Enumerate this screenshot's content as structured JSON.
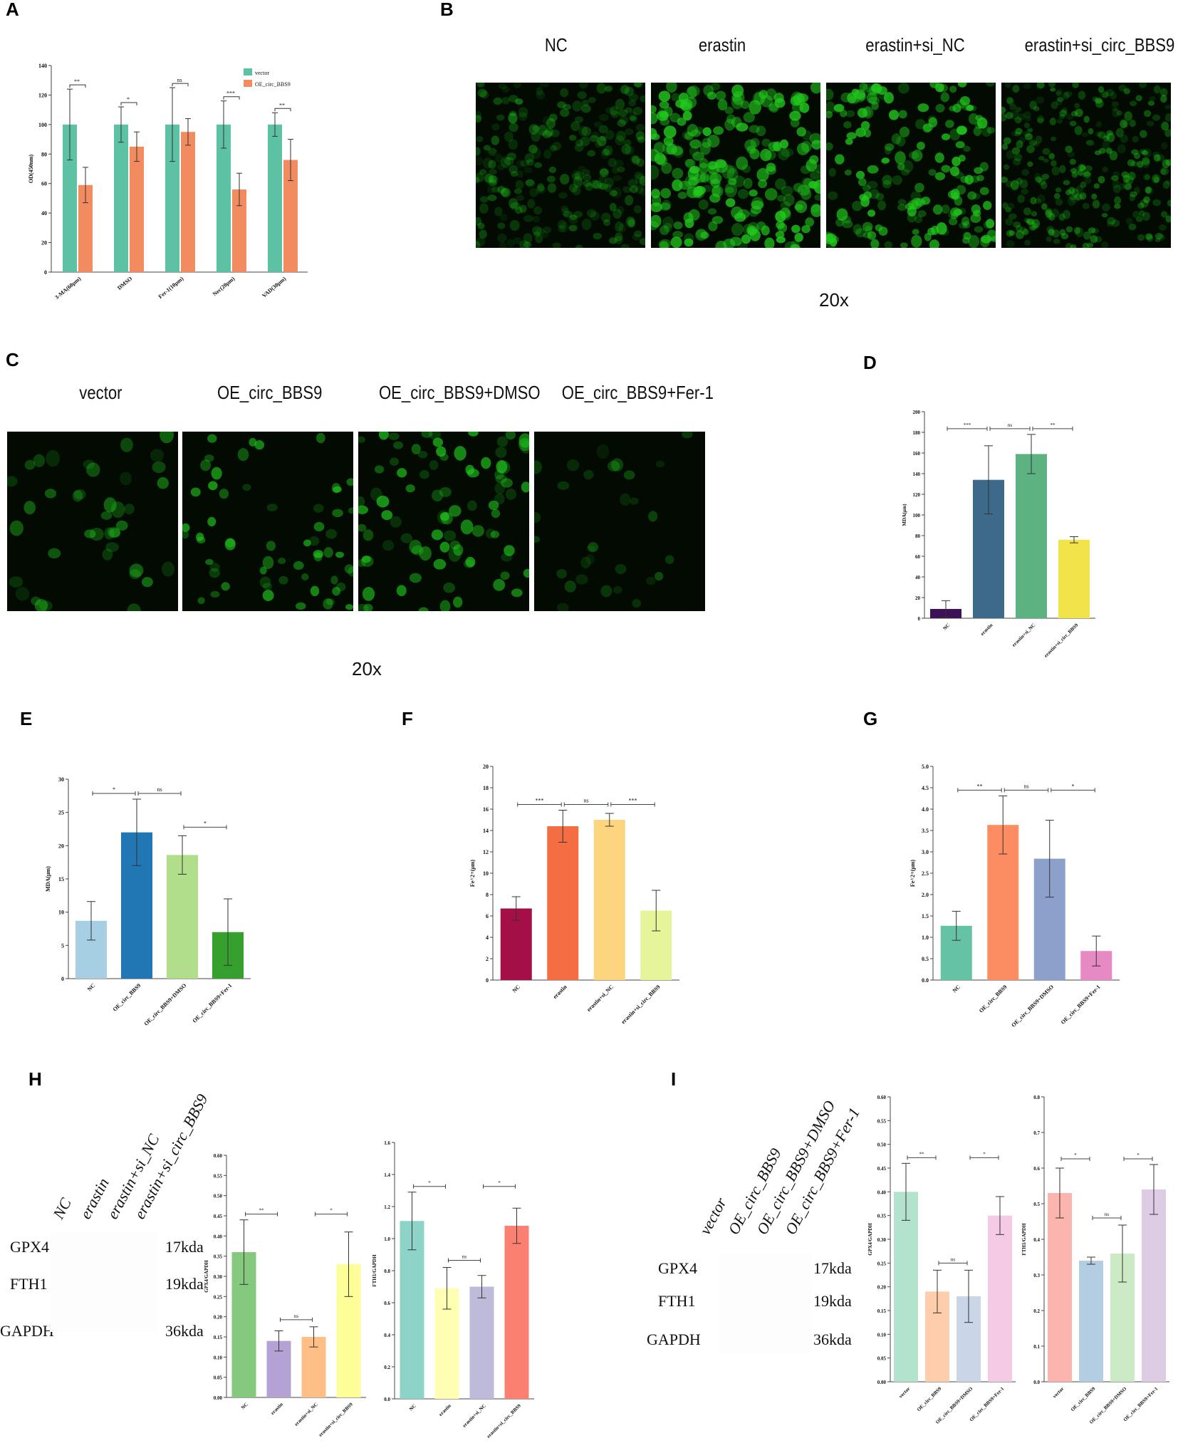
{
  "panels": {
    "A": "A",
    "B": "B",
    "C": "C",
    "D": "D",
    "E": "E",
    "F": "F",
    "G": "G",
    "H": "H",
    "I": "I"
  },
  "panel_B": {
    "headers": [
      "NC",
      "erastin",
      "erastin+si_NC",
      "erastin+si_circ_BBS9"
    ],
    "magnification": "20x"
  },
  "panel_C": {
    "headers": [
      "vector",
      "OE_circ_BBS9",
      "OE_circ_BBS9+DMSO",
      "OE_circ_BBS9+Fer-1"
    ],
    "magnification": "20x"
  },
  "panel_H": {
    "lanes": [
      "NC",
      "erastin",
      "erastin+si_NC",
      "erastin+si_circ_BBS9"
    ],
    "proteins": [
      "GPX4",
      "FTH1",
      "GAPDH"
    ],
    "sizes": [
      "17kda",
      "19kda",
      "36kda"
    ]
  },
  "panel_I": {
    "lanes": [
      "vector",
      "OE_circ_BBS9",
      "OE_circ_BBS9+DMSO",
      "OE_circ_BBS9+Fer-1"
    ],
    "proteins": [
      "GPX4",
      "FTH1",
      "GAPDH"
    ],
    "sizes": [
      "17kda",
      "19kda",
      "36kda"
    ]
  },
  "colors": {
    "micro_green": "#22c81e"
  },
  "chart_data": [
    {
      "id": "A",
      "type": "bar",
      "ylabel": "OD(450nm)",
      "ylim": [
        0,
        140
      ],
      "yticks": [
        0,
        20,
        40,
        60,
        80,
        100,
        120,
        140
      ],
      "categories": [
        "3-MA(60μm)",
        "DMSO",
        "Fer-1(10μm)",
        "Nec(20μm)",
        "VAD(30μm)"
      ],
      "legend": "top-right",
      "series": [
        {
          "name": "vector",
          "color": "#5cc2a3",
          "values": [
            100,
            100,
            100,
            100,
            100
          ],
          "errors": [
            24,
            12,
            25,
            16,
            8
          ]
        },
        {
          "name": "OE_circ_BBS9",
          "color": "#f38b60",
          "values": [
            59,
            85,
            95,
            56,
            76
          ],
          "errors": [
            12,
            10,
            9,
            11,
            14
          ]
        }
      ],
      "sig": [
        "**",
        "*",
        "ns",
        "***",
        "**"
      ]
    },
    {
      "id": "D",
      "type": "bar",
      "ylabel": "MDA(μm)",
      "ylim": [
        0,
        200
      ],
      "yticks": [
        0,
        20,
        40,
        60,
        80,
        100,
        120,
        140,
        160,
        180,
        200
      ],
      "categories": [
        "NC",
        "erastin",
        "erastin+si_NC",
        "erastin+si_circ_BBS9"
      ],
      "colors": [
        "#3d1155",
        "#3d6a8a",
        "#5cb281",
        "#f2e34a"
      ],
      "values": [
        9,
        134,
        159,
        76
      ],
      "errors": [
        8,
        33,
        19,
        3
      ],
      "sig": [
        "***",
        "ns",
        "**"
      ]
    },
    {
      "id": "E",
      "type": "bar",
      "ylabel": "MDA(μm)",
      "ylim": [
        0,
        30
      ],
      "yticks": [
        0,
        5,
        10,
        15,
        20,
        25,
        30
      ],
      "categories": [
        "NC",
        "OE_circ_BBS9",
        "OE_circ_BBS9+DMSO",
        "OE_circ_BBS9+Fer-1"
      ],
      "colors": [
        "#a7cfe3",
        "#2077b4",
        "#b1de8a",
        "#35a02e"
      ],
      "values": [
        8.7,
        22,
        18.6,
        7
      ],
      "errors": [
        2.9,
        5,
        2.9,
        5
      ],
      "sig": [
        "*",
        "ns",
        "*"
      ]
    },
    {
      "id": "F",
      "type": "bar",
      "ylabel": "Fe^2+(μm)",
      "ylim": [
        0,
        20
      ],
      "yticks": [
        0,
        2,
        4,
        6,
        8,
        10,
        12,
        14,
        16,
        18,
        20
      ],
      "categories": [
        "NC",
        "erastin",
        "erastin+si_NC",
        "erastin+si_circ_BBS9"
      ],
      "colors": [
        "#a50f47",
        "#f46d43",
        "#fdd57e",
        "#e6f49a"
      ],
      "values": [
        6.7,
        14.4,
        15,
        6.5
      ],
      "errors": [
        1.1,
        1.5,
        0.6,
        1.9
      ],
      "sig": [
        "***",
        "ns",
        "***"
      ]
    },
    {
      "id": "G",
      "type": "bar",
      "ylabel": "Fe^2+(μm)",
      "ylim": [
        0,
        5
      ],
      "yticks": [
        0,
        0.5,
        1.0,
        1.5,
        2.0,
        2.5,
        3.0,
        3.5,
        4.0,
        4.5,
        5.0
      ],
      "categories": [
        "NC",
        "OE_circ_BBS9",
        "OE_circ_BBS9+DMSO",
        "OE_circ_BBS9+Fer-1"
      ],
      "colors": [
        "#66c2a5",
        "#fc8d62",
        "#8da0cb",
        "#e78ac3"
      ],
      "values": [
        1.27,
        3.63,
        2.84,
        0.68
      ],
      "errors": [
        0.34,
        0.68,
        0.9,
        0.35
      ],
      "sig": [
        "**",
        "ns",
        "*"
      ]
    },
    {
      "id": "H1",
      "type": "bar",
      "ylabel": "GPX4/GAPDH",
      "ylim": [
        0,
        0.6
      ],
      "yticks": [
        0,
        0.05,
        0.1,
        0.15,
        0.2,
        0.25,
        0.3,
        0.35,
        0.4,
        0.45,
        0.5,
        0.55,
        0.6
      ],
      "categories": [
        "NC",
        "erastin",
        "erastin+si_NC",
        "erastin+si_circ_BBS9"
      ],
      "colors": [
        "#84c97e",
        "#b3a2d3",
        "#fdbf86",
        "#fefe99"
      ],
      "values": [
        0.36,
        0.14,
        0.15,
        0.33
      ],
      "errors": [
        0.08,
        0.025,
        0.025,
        0.08
      ],
      "sig": [
        "**",
        "ns",
        "*"
      ]
    },
    {
      "id": "H2",
      "type": "bar",
      "ylabel": "FTH1/GAPDH",
      "ylim": [
        0,
        1.6
      ],
      "yticks": [
        0,
        0.2,
        0.4,
        0.6,
        0.8,
        1.0,
        1.2,
        1.4,
        1.6
      ],
      "categories": [
        "NC",
        "erastin",
        "erastin+si_NC",
        "erastin+si_circ_BBS9"
      ],
      "colors": [
        "#8dd3c7",
        "#ffffb3",
        "#bebada",
        "#fb8072"
      ],
      "values": [
        1.11,
        0.69,
        0.7,
        1.08
      ],
      "errors": [
        0.18,
        0.13,
        0.07,
        0.11
      ],
      "sig": [
        "*",
        "ns",
        "*"
      ]
    },
    {
      "id": "I1",
      "type": "bar",
      "ylabel": "GPX4/GAPDH",
      "ylim": [
        0,
        0.6
      ],
      "yticks": [
        0,
        0.05,
        0.1,
        0.15,
        0.2,
        0.25,
        0.3,
        0.35,
        0.4,
        0.45,
        0.5,
        0.55,
        0.6
      ],
      "categories": [
        "vector",
        "OE_circ_BBS9",
        "OE_circ_BBS9+DMSO",
        "OE_circ_BBS9+Fer-1"
      ],
      "colors": [
        "#b3e2cd",
        "#fdcdac",
        "#cbd5e8",
        "#f4cae4"
      ],
      "values": [
        0.4,
        0.19,
        0.18,
        0.35
      ],
      "errors": [
        0.06,
        0.045,
        0.055,
        0.04
      ],
      "sig": [
        "**",
        "ns",
        "*"
      ]
    },
    {
      "id": "I2",
      "type": "bar",
      "ylabel": "FTH1/GAPDH",
      "ylim": [
        0,
        0.8
      ],
      "yticks": [
        0,
        0.1,
        0.2,
        0.3,
        0.4,
        0.5,
        0.6,
        0.7,
        0.8
      ],
      "categories": [
        "vector",
        "OE_circ_BBS9",
        "OE_circ_BBS9+DMSO",
        "OE_circ_BBS9+Fer-1"
      ],
      "colors": [
        "#fbb4ae",
        "#b3cde3",
        "#ccebc5",
        "#decbe4"
      ],
      "values": [
        0.53,
        0.34,
        0.36,
        0.54
      ],
      "errors": [
        0.07,
        0.01,
        0.08,
        0.07
      ],
      "sig": [
        "*",
        "ns",
        "*"
      ]
    }
  ]
}
